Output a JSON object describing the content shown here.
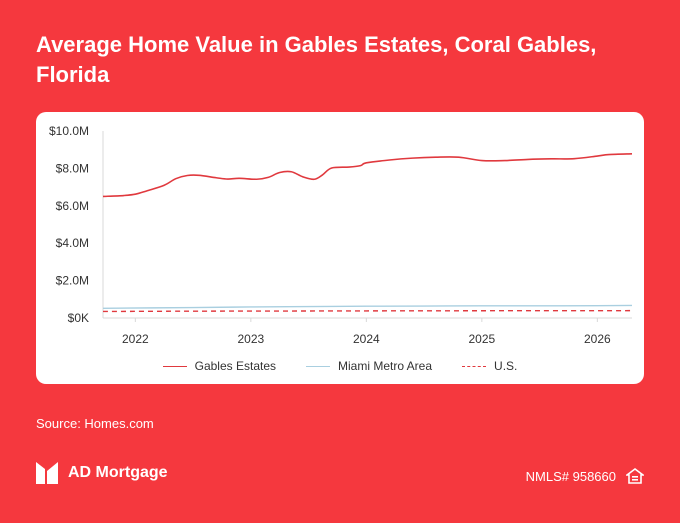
{
  "title": "Average Home Value in Gables Estates, Coral Gables, Florida",
  "source": "Source: Homes.com",
  "brand": {
    "name": "AD Mortgage",
    "logo_icon": "ad-mortgage-logo-icon"
  },
  "nmls": {
    "label": "NMLS# 958660",
    "icon": "equal-housing-icon"
  },
  "colors": {
    "background": "#f5383e",
    "gables": "#e0393e",
    "metro": "#a9cfe0",
    "us": "#e0393e"
  },
  "chart_data": {
    "type": "line",
    "title": "Average Home Value in Gables Estates, Coral Gables, Florida",
    "xlabel": "",
    "ylabel": "",
    "xlim": [
      2021.72,
      2026.3
    ],
    "ylim": [
      0,
      10000000
    ],
    "x_ticks": [
      {
        "value": 2022,
        "label": "2022"
      },
      {
        "value": 2023,
        "label": "2023"
      },
      {
        "value": 2024,
        "label": "2024"
      },
      {
        "value": 2025,
        "label": "2025"
      },
      {
        "value": 2026,
        "label": "2026"
      }
    ],
    "y_ticks": [
      {
        "value": 0,
        "label": "$0K"
      },
      {
        "value": 2000000,
        "label": "$2.0M"
      },
      {
        "value": 4000000,
        "label": "$4.0M"
      },
      {
        "value": 6000000,
        "label": "$6.0M"
      },
      {
        "value": 8000000,
        "label": "$8.0M"
      },
      {
        "value": 10000000,
        "label": "$10.0M"
      }
    ],
    "grid": false,
    "legend_position": "bottom",
    "series": [
      {
        "name": "Gables Estates",
        "style": "solid",
        "color": "#e0393e",
        "x": [
          2021.72,
          2021.9,
          2022.0,
          2022.1,
          2022.25,
          2022.35,
          2022.45,
          2022.55,
          2022.7,
          2022.8,
          2022.9,
          2023.05,
          2023.15,
          2023.25,
          2023.35,
          2023.45,
          2023.55,
          2023.62,
          2023.7,
          2023.85,
          2023.95,
          2024.0,
          2024.2,
          2024.4,
          2024.6,
          2024.8,
          2025.0,
          2025.2,
          2025.4,
          2025.6,
          2025.8,
          2026.0,
          2026.1,
          2026.3
        ],
        "values": [
          6500000,
          6550000,
          6620000,
          6800000,
          7100000,
          7450000,
          7620000,
          7630000,
          7500000,
          7430000,
          7470000,
          7420000,
          7520000,
          7780000,
          7820000,
          7550000,
          7420000,
          7650000,
          8020000,
          8070000,
          8150000,
          8300000,
          8450000,
          8550000,
          8600000,
          8600000,
          8420000,
          8420000,
          8480000,
          8510000,
          8520000,
          8660000,
          8740000,
          8780000
        ]
      },
      {
        "name": "Miami Metro Area",
        "style": "solid",
        "color": "#a9cfe0",
        "x": [
          2021.72,
          2022.5,
          2023.0,
          2023.5,
          2024.0,
          2024.5,
          2025.0,
          2025.5,
          2026.0,
          2026.3
        ],
        "values": [
          520000,
          560000,
          590000,
          610000,
          630000,
          640000,
          650000,
          650000,
          660000,
          670000
        ]
      },
      {
        "name": "U.S.",
        "style": "dashed",
        "color": "#e0393e",
        "x": [
          2021.72,
          2022.5,
          2023.0,
          2023.5,
          2024.0,
          2024.5,
          2025.0,
          2025.5,
          2026.0,
          2026.3
        ],
        "values": [
          350000,
          365000,
          370000,
          375000,
          380000,
          385000,
          388000,
          390000,
          392000,
          394000
        ]
      }
    ]
  }
}
